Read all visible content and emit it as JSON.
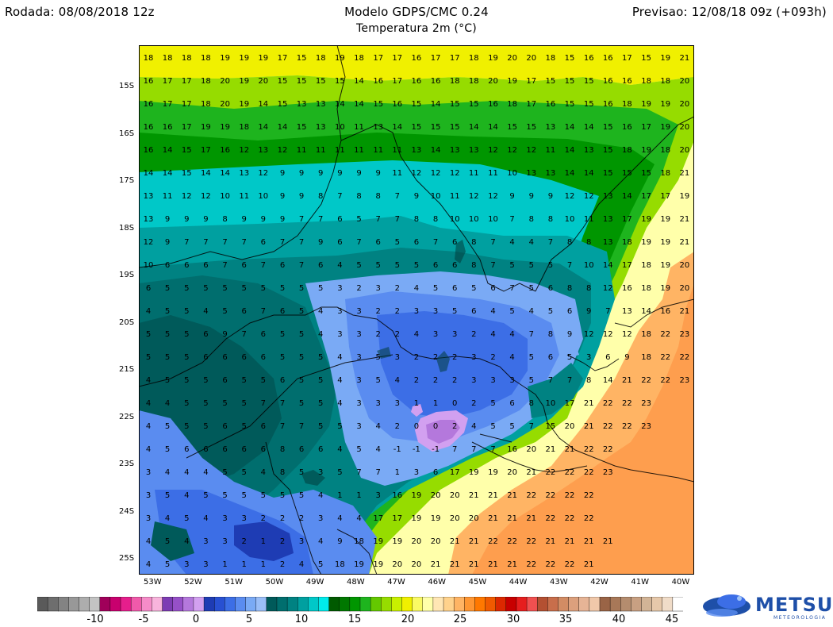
{
  "header": {
    "run": "Rodada: 08/08/2018 12z",
    "model": "Modelo GDPS/CMC 0.24",
    "variable": "Temperatura 2m (°C)",
    "forecast": "Previsao: 12/08/18 09z (+093h)"
  },
  "map": {
    "lat_labels": [
      "15S",
      "16S",
      "17S",
      "18S",
      "19S",
      "20S",
      "21S",
      "22S",
      "23S",
      "24S",
      "25S"
    ],
    "lon_labels": [
      "53W",
      "52W",
      "51W",
      "50W",
      "49W",
      "48W",
      "47W",
      "46W",
      "45W",
      "44W",
      "43W",
      "42W",
      "41W",
      "40W"
    ],
    "temperature_grid": [
      [
        18,
        18,
        18,
        18,
        19,
        19,
        19,
        17,
        15,
        18,
        19,
        18,
        17,
        17,
        16,
        17,
        17,
        18,
        19,
        20,
        20,
        18,
        15,
        16,
        16,
        17,
        15,
        19,
        21
      ],
      [
        16,
        17,
        17,
        18,
        20,
        19,
        20,
        15,
        15,
        15,
        15,
        14,
        16,
        17,
        16,
        16,
        18,
        18,
        20,
        19,
        17,
        15,
        15,
        15,
        16,
        16,
        18,
        18,
        20
      ],
      [
        16,
        17,
        17,
        18,
        20,
        19,
        14,
        15,
        13,
        13,
        14,
        14,
        15,
        16,
        15,
        14,
        15,
        15,
        16,
        18,
        17,
        16,
        15,
        15,
        16,
        18,
        19,
        19,
        20
      ],
      [
        16,
        16,
        17,
        19,
        19,
        18,
        14,
        14,
        15,
        13,
        10,
        11,
        13,
        14,
        15,
        15,
        15,
        14,
        14,
        15,
        15,
        13,
        14,
        14,
        15,
        16,
        17,
        19,
        20
      ],
      [
        16,
        14,
        15,
        17,
        16,
        12,
        13,
        12,
        11,
        11,
        11,
        11,
        11,
        11,
        13,
        14,
        13,
        13,
        12,
        12,
        12,
        11,
        14,
        13,
        15,
        18,
        19,
        18,
        20
      ],
      [
        14,
        14,
        15,
        14,
        14,
        13,
        12,
        9,
        9,
        9,
        9,
        9,
        9,
        11,
        12,
        12,
        12,
        11,
        11,
        10,
        13,
        13,
        14,
        14,
        15,
        15,
        15,
        18,
        21
      ],
      [
        13,
        11,
        12,
        12,
        10,
        11,
        10,
        9,
        9,
        8,
        7,
        8,
        8,
        7,
        9,
        10,
        11,
        12,
        12,
        9,
        9,
        9,
        12,
        12,
        13,
        14,
        17,
        17,
        19,
        22
      ],
      [
        13,
        9,
        9,
        9,
        8,
        9,
        9,
        9,
        7,
        7,
        6,
        5,
        7,
        7,
        8,
        8,
        10,
        10,
        10,
        7,
        8,
        8,
        10,
        11,
        13,
        17,
        19,
        19,
        21,
        20
      ],
      [
        12,
        9,
        7,
        7,
        7,
        7,
        6,
        7,
        7,
        9,
        6,
        7,
        6,
        5,
        6,
        7,
        6,
        8,
        7,
        4,
        4,
        7,
        8,
        8,
        13,
        18,
        19,
        19,
        21,
        21
      ],
      [
        10,
        6,
        6,
        6,
        7,
        6,
        7,
        6,
        7,
        6,
        4,
        5,
        5,
        5,
        5,
        6,
        6,
        8,
        7,
        5,
        5,
        5,
        7,
        10,
        14,
        17,
        18,
        19,
        20,
        22
      ],
      [
        6,
        5,
        5,
        5,
        5,
        5,
        5,
        5,
        5,
        5,
        3,
        2,
        3,
        2,
        4,
        5,
        6,
        5,
        6,
        7,
        5,
        6,
        8,
        8,
        12,
        16,
        18,
        19,
        20,
        22
      ],
      [
        4,
        5,
        5,
        4,
        5,
        6,
        7,
        6,
        5,
        4,
        3,
        3,
        2,
        2,
        3,
        3,
        5,
        6,
        4,
        5,
        4,
        5,
        6,
        9,
        7,
        13,
        14,
        16,
        21,
        23
      ],
      [
        5,
        5,
        5,
        6,
        9,
        7,
        6,
        5,
        5,
        4,
        3,
        3,
        2,
        2,
        4,
        3,
        3,
        2,
        4,
        4,
        7,
        8,
        9,
        12,
        12,
        12,
        18,
        22,
        23
      ],
      [
        5,
        5,
        5,
        6,
        6,
        6,
        6,
        5,
        5,
        5,
        4,
        3,
        5,
        3,
        2,
        2,
        2,
        3,
        2,
        4,
        5,
        6,
        5,
        3,
        6,
        9,
        18,
        22,
        22,
        23
      ],
      [
        4,
        5,
        5,
        5,
        6,
        5,
        5,
        6,
        5,
        5,
        4,
        3,
        5,
        4,
        2,
        2,
        2,
        3,
        3,
        3,
        5,
        7,
        7,
        8,
        14,
        21,
        22,
        22,
        23
      ],
      [
        4,
        4,
        5,
        5,
        5,
        5,
        7,
        7,
        5,
        5,
        4,
        3,
        3,
        3,
        1,
        1,
        0,
        2,
        5,
        6,
        8,
        10,
        17,
        21,
        22,
        22,
        23
      ],
      [
        4,
        5,
        5,
        5,
        6,
        5,
        6,
        7,
        7,
        5,
        5,
        3,
        4,
        2,
        0,
        0,
        2,
        4,
        5,
        5,
        7,
        15,
        20,
        21,
        22,
        22,
        23
      ],
      [
        4,
        5,
        6,
        6,
        6,
        6,
        6,
        8,
        6,
        6,
        4,
        5,
        4,
        -1,
        -1,
        -1,
        7,
        7,
        7,
        16,
        20,
        21,
        21,
        22,
        22
      ],
      [
        3,
        4,
        4,
        4,
        5,
        5,
        4,
        8,
        5,
        3,
        5,
        7,
        7,
        1,
        3,
        6,
        17,
        19,
        19,
        20,
        21,
        22,
        22,
        22,
        23
      ],
      [
        3,
        5,
        4,
        5,
        5,
        5,
        5,
        5,
        5,
        4,
        1,
        1,
        3,
        16,
        19,
        20,
        20,
        21,
        21,
        21,
        22,
        22,
        22,
        22
      ],
      [
        3,
        4,
        5,
        4,
        3,
        3,
        2,
        2,
        2,
        3,
        4,
        4,
        17,
        17,
        19,
        19,
        20,
        20,
        21,
        21,
        21,
        22,
        22,
        22
      ],
      [
        4,
        5,
        4,
        3,
        3,
        2,
        1,
        2,
        3,
        4,
        9,
        18,
        19,
        19,
        20,
        20,
        21,
        21,
        22,
        22,
        22,
        21,
        21,
        21,
        21
      ],
      [
        4,
        5,
        3,
        3,
        1,
        1,
        1,
        2,
        4,
        5,
        18,
        19,
        19,
        20,
        20,
        21,
        21,
        21,
        21,
        21,
        22,
        22,
        22,
        21
      ]
    ]
  },
  "colorbar": {
    "labels": [
      "-10",
      "-5",
      "0",
      "5",
      "10",
      "15",
      "20",
      "25",
      "30",
      "35",
      "40",
      "45"
    ],
    "colors": [
      "#5a5a5a",
      "#6e6e6e",
      "#838383",
      "#989898",
      "#adadad",
      "#c3c3c3",
      "#a0005a",
      "#c8006e",
      "#e61e8c",
      "#f05aaa",
      "#f58cc8",
      "#f8b4dc",
      "#7d3cb4",
      "#9650c8",
      "#b478dc",
      "#d2a0f0",
      "#1e3cb4",
      "#2850d2",
      "#3c6ee6",
      "#5a8cf0",
      "#7aaaf5",
      "#9abef8",
      "#005a5a",
      "#006e6e",
      "#008282",
      "#00a0a0",
      "#00c8c8",
      "#00ebeb",
      "#005a00",
      "#007800",
      "#009600",
      "#1eb41e",
      "#64c800",
      "#96dc00",
      "#c8f000",
      "#f0f000",
      "#fafa64",
      "#ffffaa",
      "#ffe6b4",
      "#ffd28c",
      "#ffb464",
      "#ff9632",
      "#ff7800",
      "#f05a00",
      "#dc2800",
      "#c80000",
      "#e61e1e",
      "#f05050",
      "#b45032",
      "#c86e4b",
      "#d28c64",
      "#dca07d",
      "#e6b496",
      "#f0c8aa",
      "#9a6446",
      "#a87858",
      "#b48c6e",
      "#c8a082",
      "#d2b496",
      "#e6c8aa",
      "#f0dcc8",
      "#ffffff"
    ]
  },
  "logo": {
    "brand": "METSUL",
    "tagline": "METEOROLOGIA"
  }
}
